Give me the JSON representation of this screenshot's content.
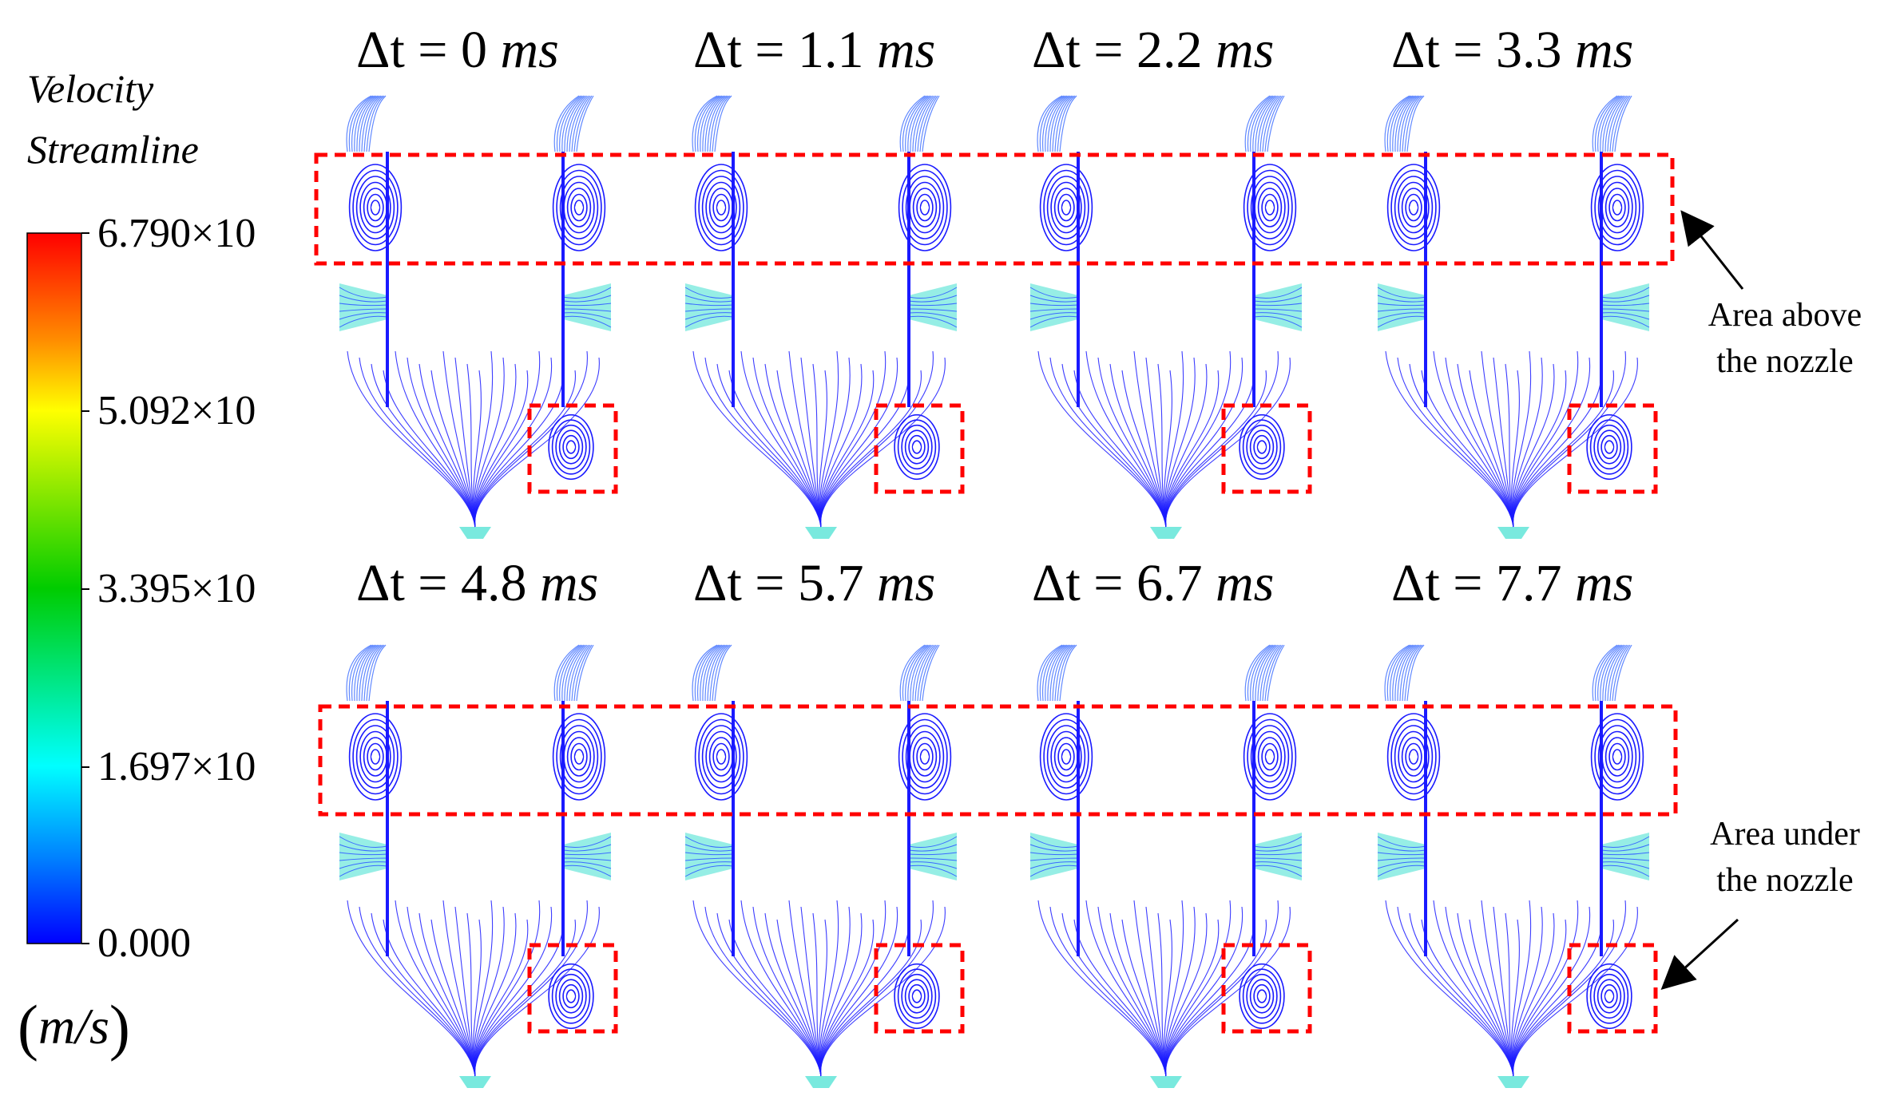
{
  "legend": {
    "title_line1": "Velocity",
    "title_line2": "Streamline",
    "ticks": [
      "6.790×10",
      "5.092×10",
      "3.395×10",
      "1.697×10",
      "0.000"
    ],
    "unit": "m/s",
    "colors": [
      "#ff0000",
      "#ff8c00",
      "#ffff00",
      "#00cc00",
      "#00ffff",
      "#0080ff",
      "#0000ff"
    ]
  },
  "time_steps": [
    {
      "delta": "Δt",
      "eq": "=",
      "value": "0",
      "unit": "ms"
    },
    {
      "delta": "Δt",
      "eq": "=",
      "value": "1.1",
      "unit": "ms"
    },
    {
      "delta": "Δt",
      "eq": "=",
      "value": "2.2",
      "unit": "ms"
    },
    {
      "delta": "Δt",
      "eq": "=",
      "value": "3.3",
      "unit": "ms"
    },
    {
      "delta": "Δt",
      "eq": "=",
      "value": "4.8",
      "unit": "ms"
    },
    {
      "delta": "Δt",
      "eq": "=",
      "value": "5.7",
      "unit": "ms"
    },
    {
      "delta": "Δt",
      "eq": "=",
      "value": "6.7",
      "unit": "ms"
    },
    {
      "delta": "Δt",
      "eq": "=",
      "value": "7.7",
      "unit": "ms"
    }
  ],
  "annotations": {
    "above": "Area above\nthe nozzle",
    "under": "Area under\nthe nozzle"
  },
  "colors": {
    "streamline": "#1a1aff",
    "streamline_light": "#3a6bff",
    "nozzle": "#40e0d0",
    "highlight_box": "#ff0000"
  }
}
